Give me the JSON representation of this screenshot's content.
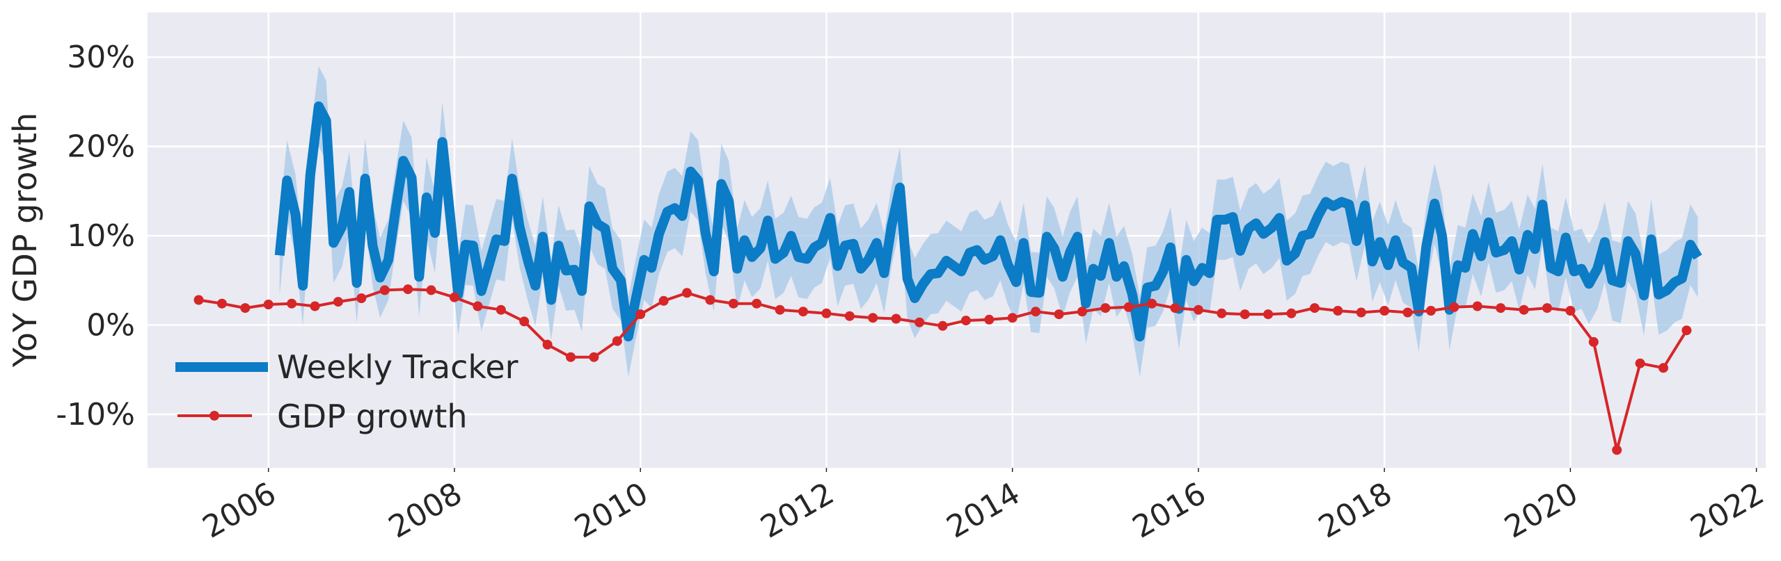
{
  "chart_data": {
    "type": "line",
    "ylabel": "YoY GDP growth",
    "xlabel": "",
    "title": "",
    "xlim": [
      2004.7,
      2022.1
    ],
    "ylim": [
      -16,
      35
    ],
    "x_ticks": [
      2006,
      2008,
      2010,
      2012,
      2014,
      2016,
      2018,
      2020,
      2022
    ],
    "x_tick_labels": [
      "2006",
      "2008",
      "2010",
      "2012",
      "2014",
      "2016",
      "2018",
      "2020",
      "2022"
    ],
    "y_ticks": [
      -10,
      0,
      10,
      20,
      30
    ],
    "y_tick_labels": [
      "-10%",
      "0%",
      "10%",
      "20%",
      "30%"
    ],
    "grid": true,
    "legend_position": "lower-left",
    "colors": {
      "weekly": "#0b7cc5",
      "band": "#a7c8e8",
      "gdp": "#d62628",
      "plot_bg": "#eaeaf2",
      "grid": "#ffffff"
    },
    "series": [
      {
        "name": "Weekly Tracker",
        "x": [
          2006.12,
          2006.2,
          2006.29,
          2006.37,
          2006.45,
          2006.54,
          2006.62,
          2006.7,
          2006.79,
          2006.87,
          2006.95,
          2007.04,
          2007.12,
          2007.2,
          2007.29,
          2007.37,
          2007.45,
          2007.54,
          2007.62,
          2007.7,
          2007.79,
          2007.87,
          2007.95,
          2008.04,
          2008.12,
          2008.2,
          2008.29,
          2008.37,
          2008.45,
          2008.54,
          2008.62,
          2008.7,
          2008.79,
          2008.87,
          2008.95,
          2009.04,
          2009.12,
          2009.2,
          2009.29,
          2009.37,
          2009.45,
          2009.54,
          2009.62,
          2009.7,
          2009.79,
          2009.87,
          2009.95,
          2010.04,
          2010.12,
          2010.2,
          2010.29,
          2010.37,
          2010.45,
          2010.54,
          2010.62,
          2010.7,
          2010.79,
          2010.87,
          2010.95,
          2011.04,
          2011.12,
          2011.2,
          2011.29,
          2011.37,
          2011.45,
          2011.54,
          2011.62,
          2011.7,
          2011.79,
          2011.87,
          2011.95,
          2012.04,
          2012.12,
          2012.2,
          2012.29,
          2012.37,
          2012.45,
          2012.54,
          2012.62,
          2012.7,
          2012.79,
          2012.87,
          2012.95,
          2013.04,
          2013.12,
          2013.2,
          2013.29,
          2013.37,
          2013.45,
          2013.54,
          2013.62,
          2013.7,
          2013.79,
          2013.87,
          2013.95,
          2014.04,
          2014.12,
          2014.2,
          2014.29,
          2014.37,
          2014.45,
          2014.54,
          2014.62,
          2014.7,
          2014.79,
          2014.87,
          2014.95,
          2015.04,
          2015.12,
          2015.2,
          2015.29,
          2015.37,
          2015.45,
          2015.54,
          2015.62,
          2015.7,
          2015.79,
          2015.87,
          2015.95,
          2016.04,
          2016.12,
          2016.2,
          2016.29,
          2016.37,
          2016.45,
          2016.54,
          2016.62,
          2016.7,
          2016.79,
          2016.87,
          2016.95,
          2017.04,
          2017.12,
          2017.2,
          2017.29,
          2017.37,
          2017.45,
          2017.54,
          2017.62,
          2017.7,
          2017.79,
          2017.87,
          2017.95,
          2018.04,
          2018.12,
          2018.2,
          2018.29,
          2018.37,
          2018.45,
          2018.54,
          2018.62,
          2018.7,
          2018.79,
          2018.87,
          2018.95,
          2019.04,
          2019.12,
          2019.2,
          2019.29,
          2019.37,
          2019.45,
          2019.54,
          2019.62,
          2019.7,
          2019.79,
          2019.87,
          2019.95,
          2020.04,
          2020.12,
          2020.2,
          2020.29,
          2020.37,
          2020.45,
          2020.54,
          2020.62,
          2020.7,
          2020.79,
          2020.87,
          2020.95,
          2021.04,
          2021.12,
          2021.2,
          2021.29,
          2021.37
        ],
        "values": [
          7.8,
          16.2,
          12.4,
          4.4,
          16.8,
          24.5,
          22.9,
          9.2,
          11.0,
          14.9,
          4.7,
          16.4,
          8.9,
          5.3,
          7.3,
          13.1,
          18.4,
          16.5,
          5.4,
          14.3,
          10.3,
          20.5,
          12.6,
          3.4,
          9.0,
          8.9,
          3.8,
          6.7,
          9.6,
          9.4,
          16.4,
          11.0,
          7.2,
          4.4,
          9.9,
          2.8,
          8.9,
          6.1,
          6.2,
          3.8,
          13.3,
          11.3,
          10.8,
          6.3,
          5.0,
          -1.3,
          2.9,
          7.3,
          6.4,
          10.2,
          12.7,
          13.1,
          12.2,
          17.2,
          16.2,
          10.3,
          6.0,
          15.8,
          13.9,
          6.3,
          9.5,
          7.6,
          8.6,
          11.7,
          7.4,
          8.1,
          10.0,
          7.6,
          7.4,
          8.7,
          9.2,
          12.0,
          6.6,
          8.9,
          9.1,
          6.3,
          7.3,
          9.2,
          5.8,
          11.1,
          15.4,
          5.2,
          3.0,
          4.6,
          5.7,
          5.8,
          7.2,
          6.6,
          6.0,
          8.1,
          8.4,
          7.3,
          7.7,
          9.5,
          6.8,
          4.8,
          9.2,
          3.7,
          3.6,
          9.9,
          8.6,
          5.4,
          8.2,
          9.9,
          2.4,
          6.3,
          5.5,
          9.2,
          5.4,
          6.6,
          3.4,
          -1.3,
          4.2,
          4.4,
          6.0,
          8.7,
          1.8,
          7.3,
          4.9,
          6.4,
          5.8,
          11.8,
          11.8,
          12.1,
          8.3,
          10.8,
          11.4,
          10.2,
          10.9,
          12.0,
          7.2,
          8.0,
          10.0,
          10.2,
          12.3,
          13.8,
          13.3,
          13.8,
          13.5,
          9.4,
          13.4,
          7.1,
          9.3,
          6.7,
          9.5,
          7.0,
          6.4,
          1.5,
          8.8,
          13.6,
          10.0,
          1.7,
          6.7,
          6.4,
          10.2,
          7.7,
          11.5,
          8.1,
          8.4,
          9.4,
          6.2,
          10.1,
          8.5,
          13.5,
          6.4,
          6.0,
          9.8,
          6.0,
          6.3,
          4.6,
          6.3,
          9.3,
          5.0,
          4.7,
          9.4,
          8.0,
          3.3,
          9.6,
          3.4,
          3.9,
          4.8,
          5.2,
          9.0,
          7.6
        ]
      },
      {
        "name": "GDP growth",
        "x": [
          2005.25,
          2005.5,
          2005.75,
          2006.0,
          2006.25,
          2006.5,
          2006.75,
          2007.0,
          2007.25,
          2007.5,
          2007.75,
          2008.0,
          2008.25,
          2008.5,
          2008.75,
          2009.0,
          2009.25,
          2009.5,
          2009.75,
          2010.0,
          2010.25,
          2010.5,
          2010.75,
          2011.0,
          2011.25,
          2011.5,
          2011.75,
          2012.0,
          2012.25,
          2012.5,
          2012.75,
          2013.0,
          2013.25,
          2013.5,
          2013.75,
          2014.0,
          2014.25,
          2014.5,
          2014.75,
          2015.0,
          2015.25,
          2015.5,
          2015.75,
          2016.0,
          2016.25,
          2016.5,
          2016.75,
          2017.0,
          2017.25,
          2017.5,
          2017.75,
          2018.0,
          2018.25,
          2018.5,
          2018.75,
          2019.0,
          2019.25,
          2019.5,
          2019.75,
          2020.0,
          2020.25,
          2020.5,
          2020.75,
          2021.0,
          2021.25
        ],
        "values": [
          2.8,
          2.4,
          1.9,
          2.3,
          2.4,
          2.1,
          2.6,
          3.0,
          3.9,
          4.0,
          3.9,
          3.1,
          2.1,
          1.7,
          0.4,
          -2.2,
          -3.6,
          -3.6,
          -1.8,
          1.2,
          2.7,
          3.6,
          2.8,
          2.4,
          2.4,
          1.7,
          1.5,
          1.3,
          1.0,
          0.8,
          0.7,
          0.3,
          -0.1,
          0.5,
          0.6,
          0.8,
          1.5,
          1.2,
          1.5,
          1.9,
          2.0,
          2.4,
          1.9,
          1.7,
          1.3,
          1.2,
          1.2,
          1.3,
          1.9,
          1.6,
          1.4,
          1.6,
          1.4,
          1.6,
          2.0,
          2.1,
          1.9,
          1.7,
          1.9,
          1.6,
          -1.9,
          -14.0,
          -4.3,
          -4.8,
          -0.6
        ]
      }
    ]
  }
}
